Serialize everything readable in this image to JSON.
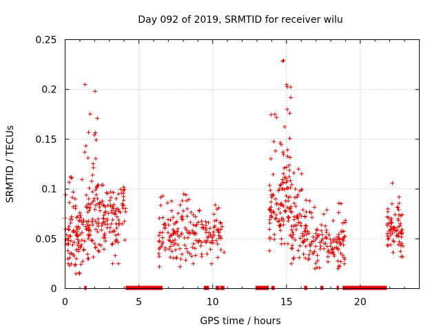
{
  "chart_data": {
    "type": "scatter",
    "title": "Day 092 of 2019, SRMTID for receiver wilu",
    "xlabel": "GPS time / hours",
    "ylabel": "SRMTID / TECUs",
    "xlim": [
      0,
      24
    ],
    "ylim": [
      0,
      0.25
    ],
    "grid": true,
    "marker_color": "#e00000",
    "x_ticks": [
      0,
      5,
      10,
      15,
      20
    ],
    "x_tick_labels": [
      "0",
      "5",
      "10",
      "15",
      "20"
    ],
    "y_ticks": [
      0,
      0.05,
      0.1,
      0.15,
      0.2,
      0.25
    ],
    "y_tick_labels": [
      "0",
      "0.05",
      "0.1",
      "0.15",
      "0.2",
      "0.25"
    ],
    "series": [
      {
        "name": "SRMTID",
        "clusters": [
          {
            "x_range": [
              0.0,
              1.3
            ],
            "y_min": 0.015,
            "y_max": 0.112,
            "y_typ": 0.05,
            "n": 90
          },
          {
            "x_range": [
              1.3,
              2.2
            ],
            "y_min": 0.03,
            "y_max": 0.205,
            "y_typ": 0.075,
            "n": 70
          },
          {
            "x_range": [
              2.2,
              4.1
            ],
            "y_min": 0.025,
            "y_max": 0.104,
            "y_typ": 0.065,
            "n": 110
          },
          {
            "x_range": [
              6.3,
              8.0
            ],
            "y_min": 0.022,
            "y_max": 0.093,
            "y_typ": 0.05,
            "n": 80
          },
          {
            "x_range": [
              8.0,
              9.6
            ],
            "y_min": 0.025,
            "y_max": 0.095,
            "y_typ": 0.055,
            "n": 60
          },
          {
            "x_range": [
              9.6,
              10.8
            ],
            "y_min": 0.025,
            "y_max": 0.084,
            "y_typ": 0.05,
            "n": 45
          },
          {
            "x_range": [
              13.8,
              14.7
            ],
            "y_min": 0.038,
            "y_max": 0.175,
            "y_typ": 0.075,
            "n": 60
          },
          {
            "x_range": [
              14.7,
              15.3
            ],
            "y_min": 0.045,
            "y_max": 0.229,
            "y_typ": 0.09,
            "n": 60
          },
          {
            "x_range": [
              15.3,
              16.5
            ],
            "y_min": 0.025,
            "y_max": 0.12,
            "y_typ": 0.06,
            "n": 70
          },
          {
            "x_range": [
              16.5,
              19.0
            ],
            "y_min": 0.02,
            "y_max": 0.088,
            "y_typ": 0.045,
            "n": 110
          },
          {
            "x_range": [
              21.8,
              22.9
            ],
            "y_min": 0.032,
            "y_max": 0.106,
            "y_typ": 0.055,
            "n": 70
          }
        ]
      }
    ],
    "flag_segments_at_zero": [
      [
        1.3,
        1.45
      ],
      [
        4.1,
        6.6
      ],
      [
        9.4,
        9.75
      ],
      [
        10.2,
        10.45
      ],
      [
        10.5,
        10.8
      ],
      [
        12.9,
        13.8
      ],
      [
        14.0,
        14.2
      ],
      [
        16.2,
        16.4
      ],
      [
        17.3,
        17.5
      ],
      [
        18.4,
        18.55
      ],
      [
        18.8,
        21.8
      ]
    ]
  }
}
